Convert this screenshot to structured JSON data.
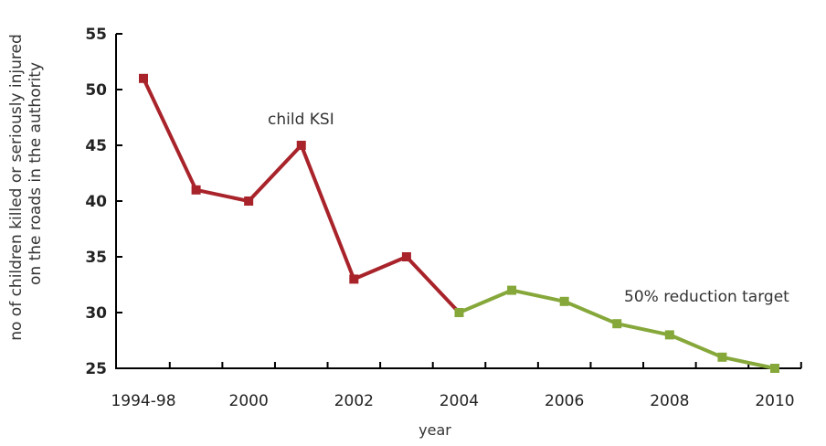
{
  "chart_data": {
    "type": "line",
    "title": "",
    "xlabel": "year",
    "ylabel_lines": [
      "no of children killed or seriously injured",
      "on the roads in the authority"
    ],
    "ylim": [
      25,
      55
    ],
    "yticks": [
      "25",
      "30",
      "35",
      "40",
      "45",
      "50",
      "55"
    ],
    "x_categories": [
      "1994-98",
      "1999",
      "2000",
      "2001",
      "2002",
      "2003",
      "2004",
      "2005",
      "2006",
      "2007",
      "2008",
      "2009",
      "2010"
    ],
    "x_tick_labels": [
      {
        "index": 0,
        "label": "1994-98"
      },
      {
        "index": 2,
        "label": "2000"
      },
      {
        "index": 4,
        "label": "2002"
      },
      {
        "index": 6,
        "label": "2004"
      },
      {
        "index": 8,
        "label": "2006"
      },
      {
        "index": 10,
        "label": "2008"
      },
      {
        "index": 12,
        "label": "2010"
      }
    ],
    "series": [
      {
        "name": "child KSI",
        "color": "#a8232a",
        "points": [
          {
            "x": "1994-98",
            "y": 51
          },
          {
            "x": "1999",
            "y": 41
          },
          {
            "x": "2000",
            "y": 40
          },
          {
            "x": "2001",
            "y": 45
          },
          {
            "x": "2002",
            "y": 33
          },
          {
            "x": "2003",
            "y": 35
          },
          {
            "x": "2004",
            "y": 30
          }
        ]
      },
      {
        "name": "50% reduction target",
        "color": "#86a83a",
        "points": [
          {
            "x": "2004",
            "y": 30
          },
          {
            "x": "2005",
            "y": 32
          },
          {
            "x": "2006",
            "y": 31
          },
          {
            "x": "2007",
            "y": 29
          },
          {
            "x": "2008",
            "y": 28
          },
          {
            "x": "2009",
            "y": 26
          },
          {
            "x": "2010",
            "y": 25
          }
        ]
      }
    ],
    "annotations": {
      "actual_label": "child KSI",
      "target_label": "50% reduction target"
    },
    "grid": false,
    "legend": "none"
  }
}
